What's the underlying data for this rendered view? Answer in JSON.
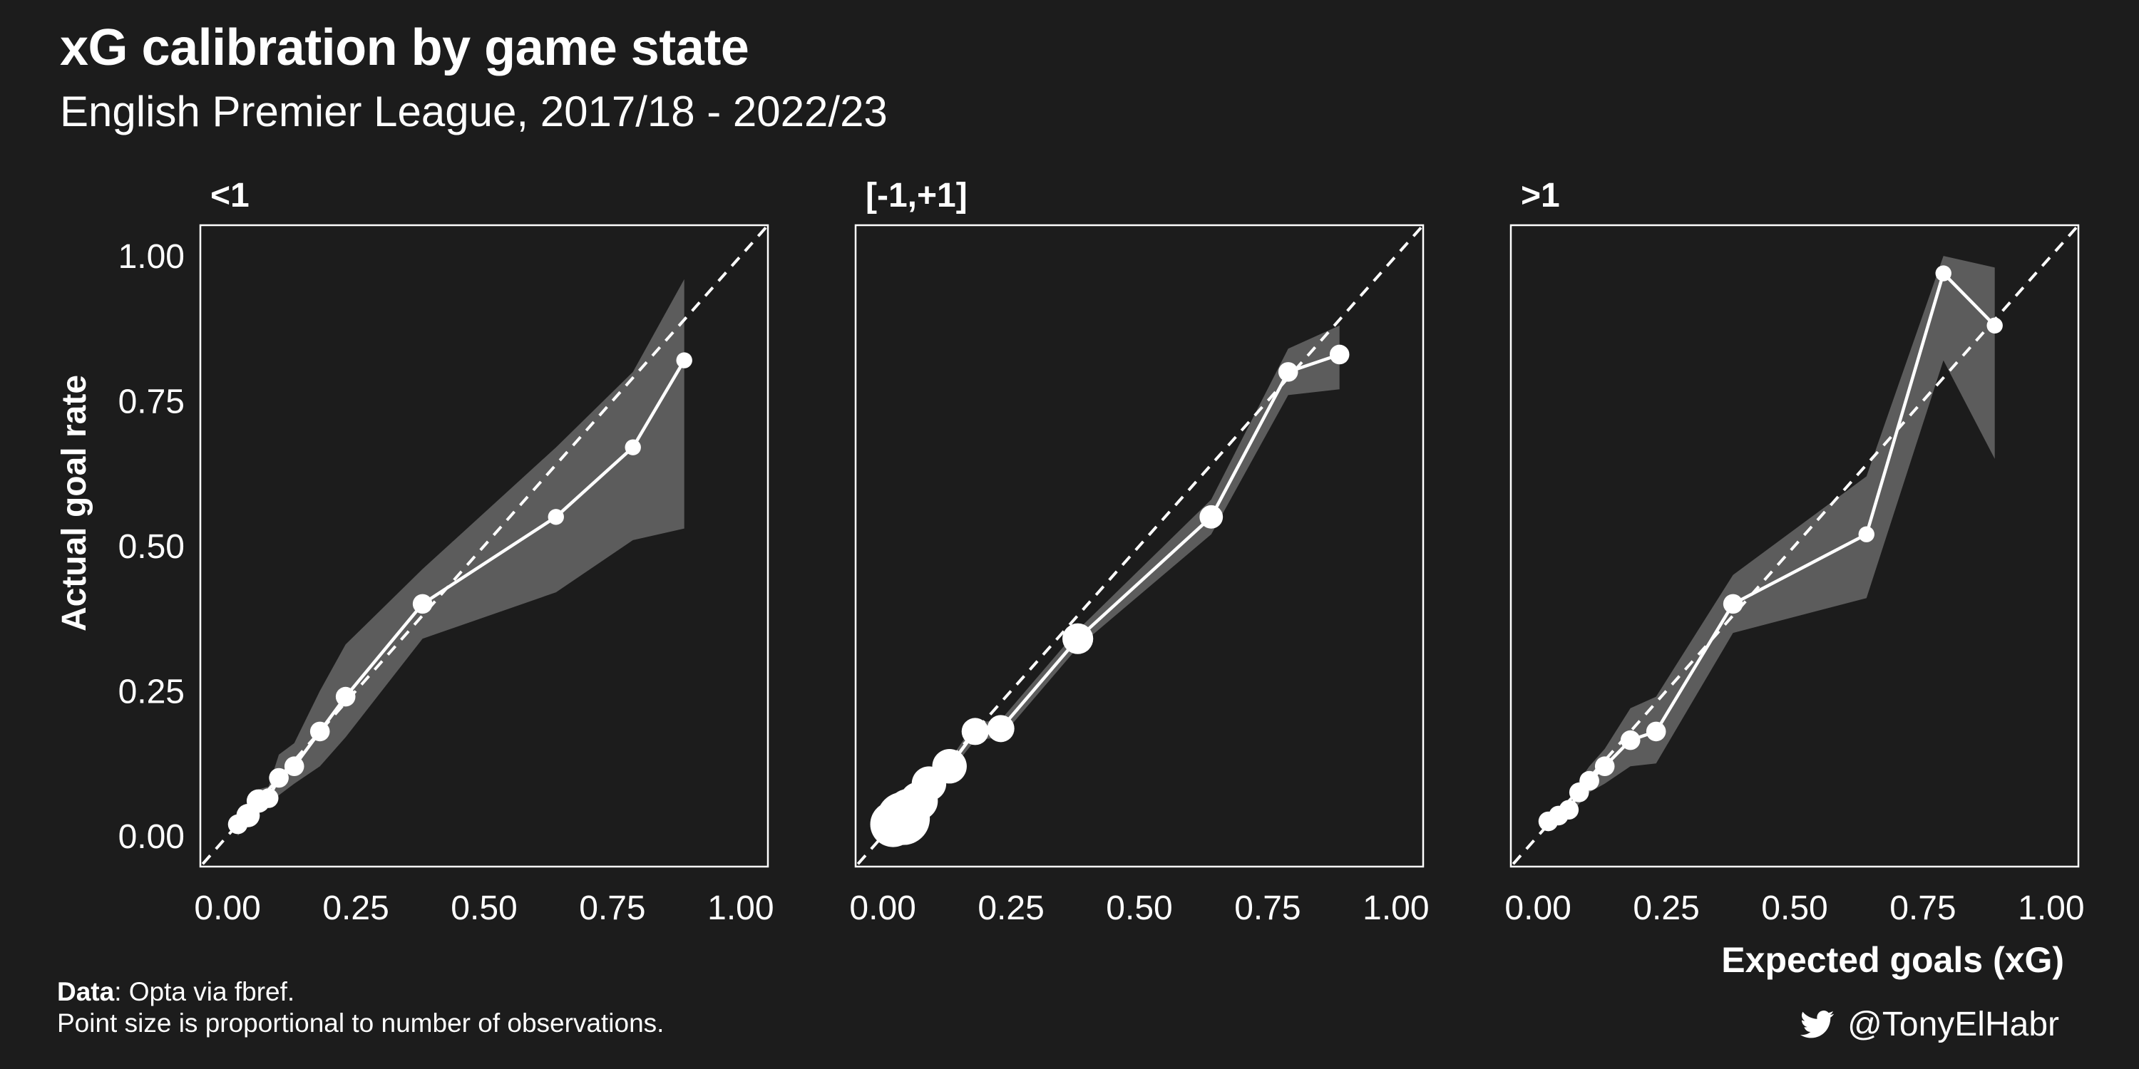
{
  "title": "xG calibration by game state",
  "subtitle": "English Premier League, 2017/18 - 2022/23",
  "caption": {
    "data_label": "Data",
    "data_text": ": Opta via fbref.",
    "note": "Point size is proportional to number of observations."
  },
  "credit": {
    "icon": "twitter-icon",
    "handle": "@TonyElHabr"
  },
  "colors": {
    "background": "#1c1c1c",
    "foreground": "#ffffff",
    "ribbon": "#5c5c5c"
  },
  "chart_data": [
    {
      "type": "line",
      "panel_title": "<1",
      "xlabel": "",
      "ylabel": "Actual goal rate",
      "xlim": [
        0,
        1
      ],
      "ylim": [
        0,
        1
      ],
      "x_ticks": [
        "0.00",
        "0.25",
        "0.50",
        "0.75",
        "1.00"
      ],
      "y_ticks": [
        "0.00",
        "0.25",
        "0.50",
        "0.75",
        "1.00"
      ],
      "reference_line": "y = x (dashed)",
      "points": [
        {
          "x": 0.02,
          "y": 0.02,
          "lo": 0.0,
          "hi": 0.04,
          "size": 3
        },
        {
          "x": 0.04,
          "y": 0.035,
          "lo": 0.02,
          "hi": 0.05,
          "size": 4
        },
        {
          "x": 0.06,
          "y": 0.06,
          "lo": 0.04,
          "hi": 0.08,
          "size": 4
        },
        {
          "x": 0.08,
          "y": 0.065,
          "lo": 0.05,
          "hi": 0.085,
          "size": 3
        },
        {
          "x": 0.1,
          "y": 0.1,
          "lo": 0.07,
          "hi": 0.14,
          "size": 3
        },
        {
          "x": 0.13,
          "y": 0.12,
          "lo": 0.09,
          "hi": 0.16,
          "size": 3
        },
        {
          "x": 0.18,
          "y": 0.18,
          "lo": 0.12,
          "hi": 0.25,
          "size": 3
        },
        {
          "x": 0.23,
          "y": 0.24,
          "lo": 0.17,
          "hi": 0.33,
          "size": 3
        },
        {
          "x": 0.38,
          "y": 0.4,
          "lo": 0.34,
          "hi": 0.46,
          "size": 3
        },
        {
          "x": 0.64,
          "y": 0.55,
          "lo": 0.42,
          "hi": 0.67,
          "size": 2
        },
        {
          "x": 0.79,
          "y": 0.67,
          "lo": 0.51,
          "hi": 0.8,
          "size": 2
        },
        {
          "x": 0.89,
          "y": 0.82,
          "lo": 0.53,
          "hi": 0.96,
          "size": 2
        }
      ]
    },
    {
      "type": "line",
      "panel_title": "[-1,+1]",
      "xlabel": "",
      "ylabel": "",
      "xlim": [
        0,
        1
      ],
      "ylim": [
        0,
        1
      ],
      "x_ticks": [
        "0.00",
        "0.25",
        "0.50",
        "0.75",
        "1.00"
      ],
      "y_ticks": [],
      "reference_line": "y = x (dashed)",
      "points": [
        {
          "x": 0.02,
          "y": 0.02,
          "lo": 0.015,
          "hi": 0.025,
          "size": 10
        },
        {
          "x": 0.04,
          "y": 0.03,
          "lo": 0.025,
          "hi": 0.035,
          "size": 12
        },
        {
          "x": 0.05,
          "y": 0.045,
          "lo": 0.04,
          "hi": 0.05,
          "size": 9
        },
        {
          "x": 0.07,
          "y": 0.06,
          "lo": 0.055,
          "hi": 0.065,
          "size": 8
        },
        {
          "x": 0.09,
          "y": 0.09,
          "lo": 0.08,
          "hi": 0.1,
          "size": 7
        },
        {
          "x": 0.13,
          "y": 0.12,
          "lo": 0.11,
          "hi": 0.13,
          "size": 7
        },
        {
          "x": 0.18,
          "y": 0.18,
          "lo": 0.165,
          "hi": 0.195,
          "size": 5
        },
        {
          "x": 0.23,
          "y": 0.185,
          "lo": 0.17,
          "hi": 0.2,
          "size": 5
        },
        {
          "x": 0.38,
          "y": 0.34,
          "lo": 0.325,
          "hi": 0.355,
          "size": 6
        },
        {
          "x": 0.64,
          "y": 0.55,
          "lo": 0.52,
          "hi": 0.58,
          "size": 4
        },
        {
          "x": 0.79,
          "y": 0.8,
          "lo": 0.76,
          "hi": 0.84,
          "size": 3
        },
        {
          "x": 0.89,
          "y": 0.83,
          "lo": 0.77,
          "hi": 0.88,
          "size": 3
        }
      ]
    },
    {
      "type": "line",
      "panel_title": ">1",
      "xlabel": "Expected goals (xG)",
      "ylabel": "",
      "xlim": [
        0,
        1
      ],
      "ylim": [
        0,
        1
      ],
      "x_ticks": [
        "0.00",
        "0.25",
        "0.50",
        "0.75",
        "1.00"
      ],
      "y_ticks": [],
      "reference_line": "y = x (dashed)",
      "points": [
        {
          "x": 0.02,
          "y": 0.025,
          "lo": 0.015,
          "hi": 0.04,
          "size": 3
        },
        {
          "x": 0.04,
          "y": 0.035,
          "lo": 0.02,
          "hi": 0.05,
          "size": 3
        },
        {
          "x": 0.06,
          "y": 0.045,
          "lo": 0.03,
          "hi": 0.06,
          "size": 3
        },
        {
          "x": 0.08,
          "y": 0.075,
          "lo": 0.055,
          "hi": 0.095,
          "size": 3
        },
        {
          "x": 0.1,
          "y": 0.095,
          "lo": 0.075,
          "hi": 0.12,
          "size": 3
        },
        {
          "x": 0.13,
          "y": 0.12,
          "lo": 0.09,
          "hi": 0.15,
          "size": 3
        },
        {
          "x": 0.18,
          "y": 0.165,
          "lo": 0.12,
          "hi": 0.22,
          "size": 3
        },
        {
          "x": 0.23,
          "y": 0.18,
          "lo": 0.125,
          "hi": 0.24,
          "size": 3
        },
        {
          "x": 0.38,
          "y": 0.4,
          "lo": 0.35,
          "hi": 0.45,
          "size": 3
        },
        {
          "x": 0.64,
          "y": 0.52,
          "lo": 0.41,
          "hi": 0.62,
          "size": 2
        },
        {
          "x": 0.79,
          "y": 0.97,
          "lo": 0.82,
          "hi": 1.0,
          "size": 2
        },
        {
          "x": 0.89,
          "y": 0.88,
          "lo": 0.65,
          "hi": 0.98,
          "size": 2
        }
      ]
    }
  ]
}
